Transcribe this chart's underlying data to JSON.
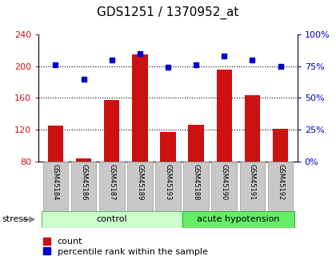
{
  "title": "GDS1251 / 1370952_at",
  "samples": [
    "GSM45184",
    "GSM45186",
    "GSM45187",
    "GSM45189",
    "GSM45193",
    "GSM45188",
    "GSM45190",
    "GSM45191",
    "GSM45192"
  ],
  "counts": [
    125,
    84,
    157,
    215,
    117,
    126,
    196,
    163,
    121
  ],
  "percentiles": [
    76,
    65,
    80,
    85,
    74,
    76,
    83,
    80,
    75
  ],
  "ylim_left": [
    80,
    240
  ],
  "ylim_right": [
    0,
    100
  ],
  "yticks_left": [
    80,
    120,
    160,
    200,
    240
  ],
  "yticks_right": [
    0,
    25,
    50,
    75,
    100
  ],
  "hlines": [
    120,
    160,
    200
  ],
  "bar_color": "#cc1111",
  "scatter_color": "#0000cc",
  "n_control": 5,
  "n_acute": 4,
  "control_label": "control",
  "acute_label": "acute hypotension",
  "stress_label": "stress",
  "legend_count": "count",
  "legend_pct": "percentile rank within the sample",
  "background_control": "#ccffcc",
  "background_acute": "#66ee66",
  "xtick_bg": "#c8c8c8",
  "title_fontsize": 11,
  "axis_fontsize": 8,
  "label_fontsize": 8,
  "legend_fontsize": 8
}
